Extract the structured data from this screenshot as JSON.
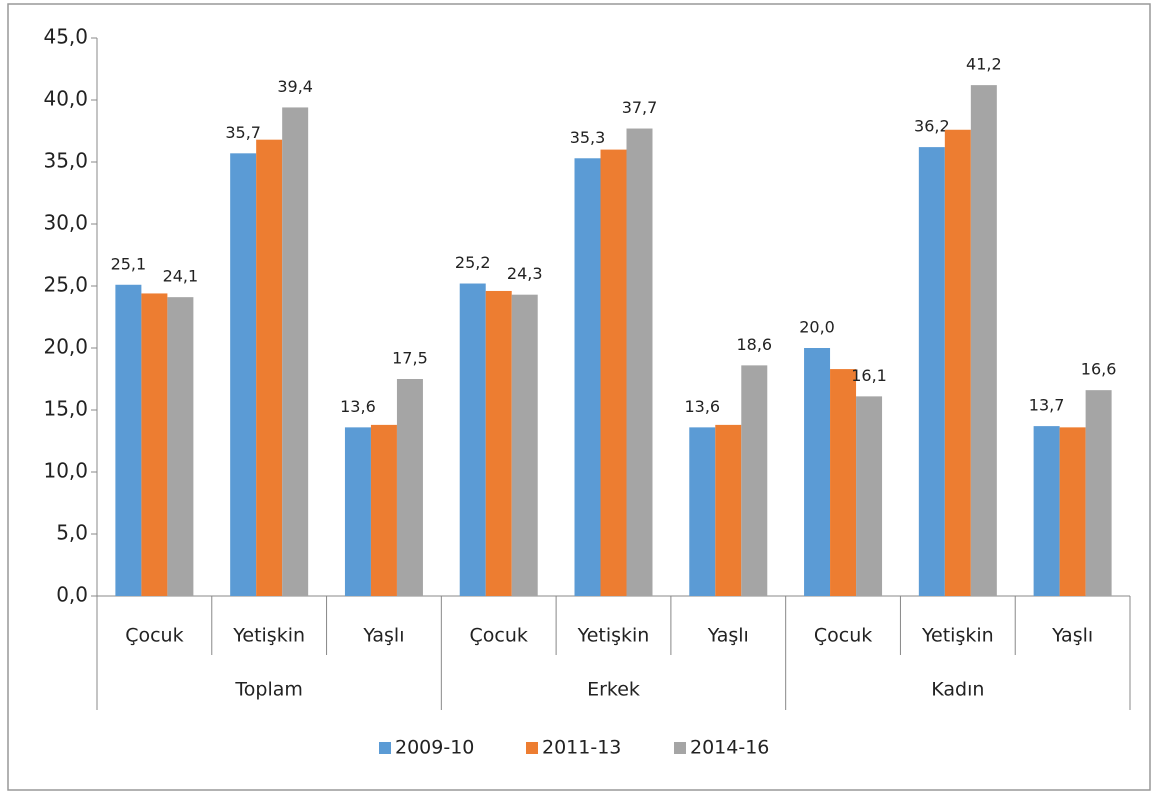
{
  "chart_data": {
    "type": "bar",
    "categories": [
      "Çocuk",
      "Yetişkin",
      "Yaşlı",
      "Çocuk",
      "Yetişkin",
      "Yaşlı",
      "Çocuk",
      "Yetişkin",
      "Yaşlı"
    ],
    "groups": [
      "Toplam",
      "Erkek",
      "Kadın"
    ],
    "series": [
      {
        "name": "2009-10",
        "color": "#5b9bd5",
        "values": [
          25.1,
          35.7,
          13.6,
          25.2,
          35.3,
          13.6,
          20.0,
          36.2,
          13.7
        ],
        "value_labels": [
          "25,1",
          "35,7",
          "13,6",
          "25,2",
          "35,3",
          "13,6",
          "20,0",
          "36,2",
          "13,7"
        ]
      },
      {
        "name": "2011-13",
        "color": "#ed7d31",
        "values": [
          24.4,
          36.8,
          13.8,
          24.6,
          36.0,
          13.8,
          18.3,
          37.6,
          13.6
        ]
      },
      {
        "name": "2014-16",
        "color": "#a5a5a5",
        "values": [
          24.1,
          39.4,
          17.5,
          24.3,
          37.7,
          18.6,
          16.1,
          41.2,
          16.6
        ],
        "value_labels": [
          "24,1",
          "39,4",
          "17,5",
          "24,3",
          "37,7",
          "18,6",
          "16,1",
          "41,2",
          "16,6"
        ]
      }
    ],
    "ylim": [
      0,
      45
    ],
    "yticks": [
      {
        "value": 0,
        "label": "0,0"
      },
      {
        "value": 5,
        "label": "5,0"
      },
      {
        "value": 10,
        "label": "10,0"
      },
      {
        "value": 15,
        "label": "15,0"
      },
      {
        "value": 20,
        "label": "20,0"
      },
      {
        "value": 25,
        "label": "25,0"
      },
      {
        "value": 30,
        "label": "30,0"
      },
      {
        "value": 35,
        "label": "35,0"
      },
      {
        "value": 40,
        "label": "40,0"
      },
      {
        "value": 45,
        "label": "45,0"
      }
    ],
    "legend": "bottom"
  }
}
